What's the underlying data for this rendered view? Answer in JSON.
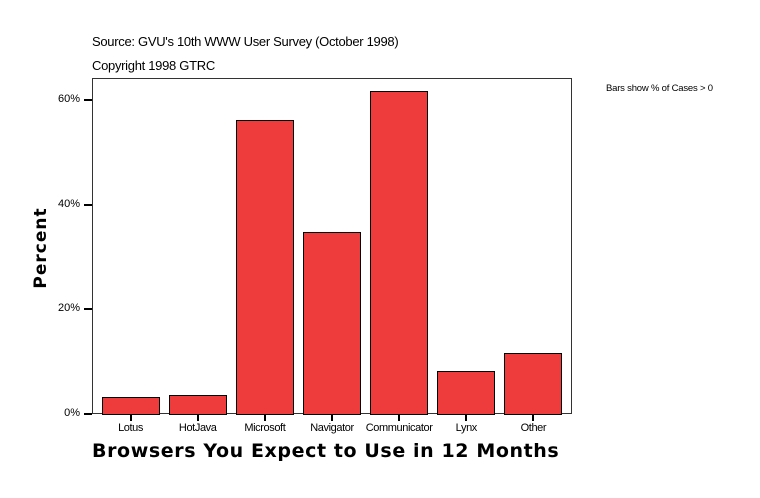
{
  "header": {
    "source": "Source: GVU's 10th WWW User Survey (October 1998)",
    "copyright": "Copyright 1998 GTRC",
    "note": "Bars show % of Cases > 0"
  },
  "chart_data": {
    "type": "bar",
    "title": "",
    "xlabel": "Browsers You Expect to Use in 12 Months",
    "ylabel": "Percent",
    "categories": [
      "Lotus",
      "HotJava",
      "Microsoft",
      "Navigator",
      "Communicator",
      "Lynx",
      "Other"
    ],
    "values": [
      3.2,
      3.6,
      56.2,
      34.8,
      61.7,
      8.2,
      11.7
    ],
    "ylim": [
      0,
      64.2
    ],
    "yticks": [
      0,
      20,
      40,
      60
    ],
    "ytick_labels": [
      "0%",
      "20%",
      "40%",
      "60%"
    ],
    "grid": false,
    "legend": "none",
    "bar_color": "#ee3b3b",
    "annotation": "Bars show % of Cases > 0"
  }
}
